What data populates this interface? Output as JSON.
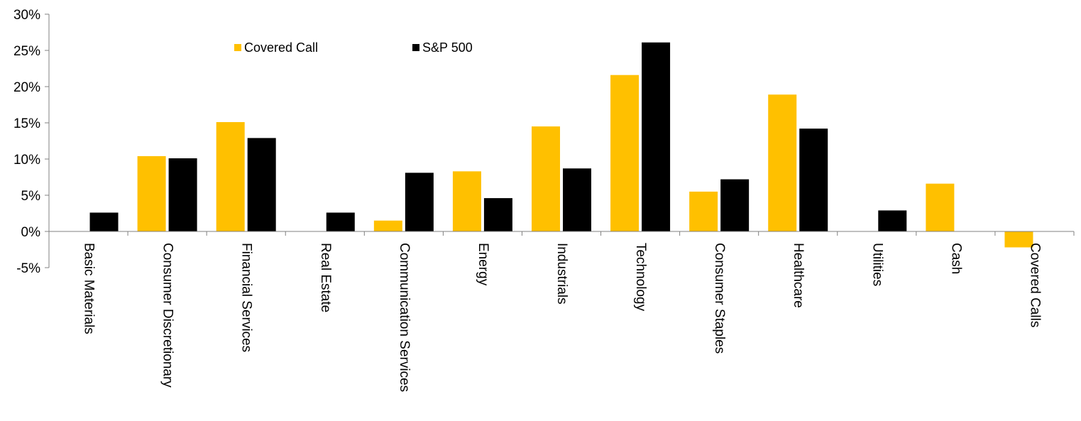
{
  "chart_data": {
    "type": "bar",
    "categories": [
      "Basic Materials",
      "Consumer Discretionary",
      "Financial Services",
      "Real Estate",
      "Communication Services",
      "Energy",
      "Industrials",
      "Technology",
      "Consumer Staples",
      "Healthcare",
      "Utilities",
      "Cash",
      "Covered Calls"
    ],
    "series": [
      {
        "name": "Covered Call",
        "color": "#FFC000",
        "values": [
          0,
          10.4,
          15.1,
          0,
          1.5,
          8.3,
          14.5,
          21.6,
          5.5,
          18.9,
          0,
          6.6,
          -2.2
        ]
      },
      {
        "name": "S&P 500",
        "color": "#000000",
        "values": [
          2.6,
          10.1,
          12.9,
          2.6,
          8.1,
          4.6,
          8.7,
          26.1,
          7.2,
          14.2,
          2.9,
          0,
          0
        ]
      }
    ],
    "yticks": [
      "30%",
      "25%",
      "20%",
      "15%",
      "10%",
      "5%",
      "0%",
      "-5%"
    ],
    "ylim": [
      -5,
      30
    ],
    "title": "",
    "xlabel": "",
    "ylabel": "",
    "legend": "top-center",
    "grid": false
  }
}
